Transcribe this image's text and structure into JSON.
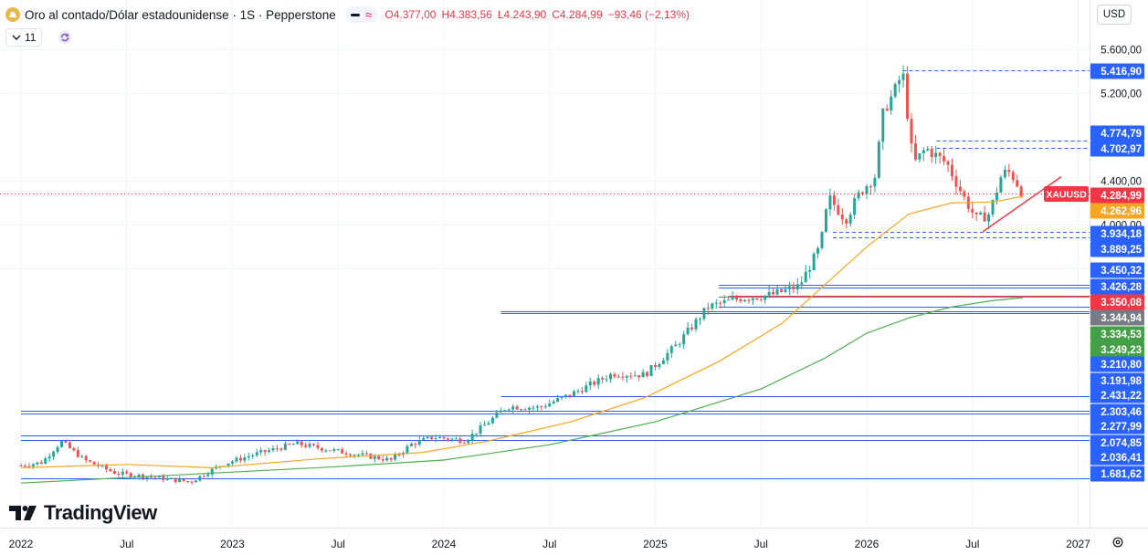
{
  "header": {
    "title": "Oro al contado/Dólar estadounidense · 1S · Pepperstone",
    "ohlc": {
      "open": "O4.377,00",
      "high": "H4.383,56",
      "low": "L4.243,90",
      "close": "C4.284,99",
      "change": "−93,46 (−2,13%)"
    },
    "indicator_count": "11"
  },
  "toolbar": {
    "currency": "USD"
  },
  "branding": {
    "logo_text": "TradingView"
  },
  "colors": {
    "up": "#26a69a",
    "down": "#ef5350",
    "ma_fast": "#f5a623",
    "ma_slow": "#4caf50",
    "line_blue": "#2962ff",
    "price_label": "#f23645"
  },
  "chart_data": {
    "type": "candlestick",
    "symbol": "XAUUSD",
    "interval": "1S",
    "source": "Pepperstone",
    "x_ticks": [
      "2022",
      "Jul",
      "2023",
      "Jul",
      "2024",
      "Jul",
      "2025",
      "Jul",
      "2026",
      "Jul",
      "2027"
    ],
    "y_ticks": [
      "5.600,00",
      "5.200,00",
      "4.400,00",
      "4.000,00",
      "3.600,00"
    ],
    "ylim": [
      1350,
      5950
    ],
    "price_path": [
      [
        2022.0,
        1800
      ],
      [
        2022.1,
        1830
      ],
      [
        2022.19,
        2020
      ],
      [
        2022.3,
        1850
      ],
      [
        2022.45,
        1730
      ],
      [
        2022.6,
        1700
      ],
      [
        2022.8,
        1650
      ],
      [
        2022.95,
        1810
      ],
      [
        2023.1,
        1900
      ],
      [
        2023.3,
        2000
      ],
      [
        2023.5,
        1930
      ],
      [
        2023.75,
        1850
      ],
      [
        2023.85,
        2000
      ],
      [
        2023.95,
        2060
      ],
      [
        2024.1,
        2030
      ],
      [
        2024.2,
        2180
      ],
      [
        2024.3,
        2340
      ],
      [
        2024.45,
        2330
      ],
      [
        2024.6,
        2450
      ],
      [
        2024.8,
        2640
      ],
      [
        2024.95,
        2630
      ],
      [
        2025.1,
        2900
      ],
      [
        2025.25,
        3250
      ],
      [
        2025.4,
        3330
      ],
      [
        2025.55,
        3360
      ],
      [
        2025.68,
        3440
      ],
      [
        2025.78,
        3800
      ],
      [
        2025.82,
        4250
      ],
      [
        2025.9,
        4050
      ],
      [
        2025.97,
        4300
      ],
      [
        2026.04,
        4450
      ],
      [
        2026.08,
        5050
      ],
      [
        2026.13,
        5210
      ],
      [
        2026.17,
        5400
      ],
      [
        2026.22,
        4550
      ],
      [
        2026.28,
        4700
      ],
      [
        2026.38,
        4560
      ],
      [
        2026.46,
        4250
      ],
      [
        2026.52,
        4050
      ],
      [
        2026.58,
        4100
      ],
      [
        2026.64,
        4470
      ],
      [
        2026.68,
        4480
      ],
      [
        2026.74,
        4285
      ]
    ],
    "moving_averages": [
      {
        "color": "#f5a623",
        "last": "4.262,96",
        "points": [
          [
            2022.0,
            1780
          ],
          [
            2022.5,
            1810
          ],
          [
            2022.9,
            1780
          ],
          [
            2023.4,
            1860
          ],
          [
            2023.9,
            1920
          ],
          [
            2024.2,
            2020
          ],
          [
            2024.6,
            2200
          ],
          [
            2024.95,
            2420
          ],
          [
            2025.3,
            2750
          ],
          [
            2025.6,
            3100
          ],
          [
            2025.8,
            3450
          ],
          [
            2026.0,
            3800
          ],
          [
            2026.2,
            4100
          ],
          [
            2026.4,
            4200
          ],
          [
            2026.6,
            4210
          ],
          [
            2026.74,
            4263
          ]
        ]
      },
      {
        "color": "#4caf50",
        "last": "3.334,53",
        "points": [
          [
            2022.0,
            1640
          ],
          [
            2022.5,
            1690
          ],
          [
            2023.0,
            1740
          ],
          [
            2023.5,
            1790
          ],
          [
            2024.0,
            1850
          ],
          [
            2024.5,
            1990
          ],
          [
            2025.0,
            2200
          ],
          [
            2025.5,
            2500
          ],
          [
            2025.8,
            2780
          ],
          [
            2026.0,
            3010
          ],
          [
            2026.2,
            3150
          ],
          [
            2026.4,
            3250
          ],
          [
            2026.6,
            3310
          ],
          [
            2026.74,
            3335
          ]
        ]
      }
    ],
    "price_levels": [
      {
        "label": "5.416,90",
        "value": 5416.9,
        "style": "dashed",
        "x_start": 2026.17
      },
      {
        "label": "4.774,79",
        "value": 4774.79,
        "style": "dashed",
        "x_start": 2026.33
      },
      {
        "label": "4.702,97",
        "value": 4702.97,
        "style": "dashed",
        "x_start": 2026.33
      },
      {
        "label": "3.934,18",
        "value": 3934.18,
        "style": "dashed",
        "x_start": 2025.84
      },
      {
        "label": "3.889,25",
        "value": 3889.25,
        "style": "dashed",
        "x_start": 2025.84
      },
      {
        "label": "3.450,32",
        "value": 3450.32,
        "style": "solid",
        "x_start": 2025.3
      },
      {
        "label": "3.426,28",
        "value": 3426.28,
        "style": "solid",
        "x_start": 2025.3
      },
      {
        "label": "3.350,08",
        "value": 3350.08,
        "style": "solid",
        "x_start": 2025.35,
        "color": "#f23645"
      },
      {
        "label": "3.344,94",
        "value": 3344.94,
        "style": "solid",
        "x_start": 2025.3,
        "color": "#787b86"
      },
      {
        "label": "3.249,23",
        "value": 3249.23,
        "style": "solid",
        "x_start": 2025.3
      },
      {
        "label": "3.210,80",
        "value": 3210.8,
        "style": "solid",
        "x_start": 2024.27
      },
      {
        "label": "3.191,98",
        "value": 3191.98,
        "style": "solid",
        "x_start": 2024.27
      },
      {
        "label": "2.431,22",
        "value": 2431.22,
        "style": "solid",
        "x_start": 2024.27
      },
      {
        "label": "2.303,46",
        "value": 2303.46,
        "style": "solid",
        "x_start": 2022.0
      },
      {
        "label": "2.277,99",
        "value": 2277.99,
        "style": "solid",
        "x_start": 2022.0
      },
      {
        "label": "2.074,85",
        "value": 2074.85,
        "style": "solid",
        "x_start": 2022.0
      },
      {
        "label": "2.036,41",
        "value": 2036.41,
        "style": "solid",
        "x_start": 2022.0
      },
      {
        "label": "1.681,62",
        "value": 1681.62,
        "style": "solid",
        "x_start": 2022.0
      }
    ],
    "right_scale_labels": [
      {
        "text": "5.416,90",
        "bg": "#2962ff"
      },
      {
        "text": "4.774,79",
        "bg": "#2962ff"
      },
      {
        "text": "4.702,97",
        "bg": "#2962ff"
      },
      {
        "text": "4.284,99",
        "bg": "#f23645"
      },
      {
        "text": "4.262,96",
        "bg": "#f5a623"
      },
      {
        "text": "3.934,18",
        "bg": "#2962ff"
      },
      {
        "text": "3.889,25",
        "bg": "#2962ff"
      },
      {
        "text": "3.450,32",
        "bg": "#2962ff"
      },
      {
        "text": "3.426,28",
        "bg": "#2962ff"
      },
      {
        "text": "3.350,08",
        "bg": "#f23645"
      },
      {
        "text": "3.344,94",
        "bg": "#787b86"
      },
      {
        "text": "3.334,53",
        "bg": "#43a047"
      },
      {
        "text": "3.249,23",
        "bg": "#43a047"
      },
      {
        "text": "3.210,80",
        "bg": "#2962ff"
      },
      {
        "text": "3.191,98",
        "bg": "#2962ff"
      },
      {
        "text": "2.431,22",
        "bg": "#2962ff"
      },
      {
        "text": "2.303,46",
        "bg": "#2962ff"
      },
      {
        "text": "2.277,99",
        "bg": "#2962ff"
      },
      {
        "text": "2.074,85",
        "bg": "#2962ff"
      },
      {
        "text": "2.036,41",
        "bg": "#2962ff"
      },
      {
        "text": "1.681,62",
        "bg": "#2962ff"
      }
    ],
    "last_price": {
      "value": 4284.99,
      "label": "4.284,99",
      "tag": "XAUUSD"
    },
    "trendline": {
      "color": "#f23645",
      "from": [
        2026.55,
        3940
      ],
      "to": [
        2026.92,
        4440
      ]
    },
    "grid": true
  }
}
